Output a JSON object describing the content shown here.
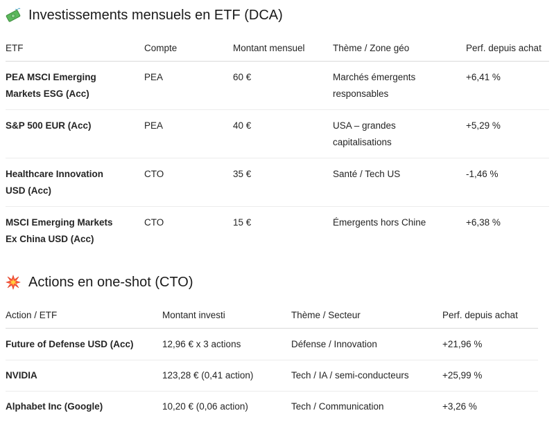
{
  "etf_section": {
    "icon": "money-with-wings-icon",
    "title": "Investissements mensuels en ETF (DCA)",
    "headers": [
      "ETF",
      "Compte",
      "Montant mensuel",
      "Thème / Zone géo",
      "Perf. depuis achat"
    ],
    "rows": [
      {
        "name_line1": "PEA MSCI Emerging",
        "name_line2": "Markets ESG (Acc)",
        "account": "PEA",
        "amount": "60 €",
        "theme_line1": "Marchés émergents",
        "theme_line2": "responsables",
        "perf": "+6,41 %"
      },
      {
        "name_line1": "S&P 500 EUR (Acc)",
        "name_line2": "",
        "account": "PEA",
        "amount": "40 €",
        "theme_line1": "USA – grandes",
        "theme_line2": "capitalisations",
        "perf": "+5,29 %"
      },
      {
        "name_line1": "Healthcare Innovation",
        "name_line2": "USD (Acc)",
        "account": "CTO",
        "amount": "35 €",
        "theme_line1": "Santé / Tech US",
        "theme_line2": "",
        "perf": "-1,46 %"
      },
      {
        "name_line1": "MSCI Emerging Markets",
        "name_line2": "Ex China USD (Acc)",
        "account": "CTO",
        "amount": "15 €",
        "theme_line1": "Émergents hors Chine",
        "theme_line2": "",
        "perf": "+6,38 %"
      }
    ]
  },
  "actions_section": {
    "icon": "collision-icon",
    "title": "Actions en one-shot (CTO)",
    "headers": [
      "Action / ETF",
      "Montant investi",
      "Thème / Secteur",
      "Perf. depuis achat"
    ],
    "rows": [
      {
        "name": "Future of Defense USD (Acc)",
        "amount": "12,96 € x 3 actions",
        "theme": "Défense / Innovation",
        "perf": "+21,96 %"
      },
      {
        "name": "NVIDIA",
        "amount": "123,28 € (0,41 action)",
        "theme": "Tech / IA / semi-conducteurs",
        "perf": "+25,99 %"
      },
      {
        "name": "Alphabet Inc (Google)",
        "amount": "10,20 € (0,06 action)",
        "theme": "Tech / Communication",
        "perf": "+3,26 %"
      }
    ]
  }
}
